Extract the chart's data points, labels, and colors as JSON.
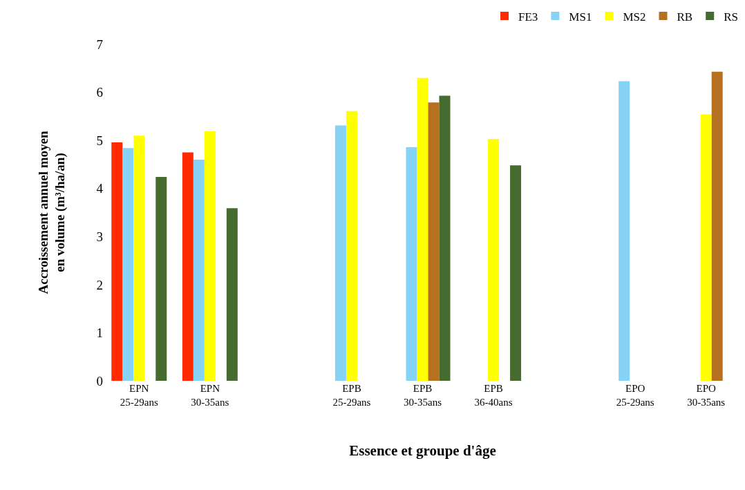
{
  "chart_data": {
    "type": "bar",
    "xlabel": "Essence et groupe d'âge",
    "ylabel": "Accroissement annuel moyen\nen volume (m³/ha/an)",
    "categories": [
      "EPN\n25-29ans",
      "EPN\n30-35ans",
      null,
      "EPB\n25-29ans",
      "EPB\n30-35ans",
      "EPB\n36-40ans",
      null,
      "EPO\n25-29ans",
      "EPO\n30-35ans"
    ],
    "series": [
      {
        "name": "FE3",
        "color": "#ff2a00",
        "values": [
          4.96,
          4.75,
          null,
          null,
          null,
          null,
          null,
          null,
          null
        ]
      },
      {
        "name": "MS1",
        "color": "#87d3f5",
        "values": [
          4.84,
          4.6,
          null,
          5.31,
          4.86,
          null,
          null,
          6.23,
          null
        ]
      },
      {
        "name": "MS2",
        "color": "#ffff00",
        "values": [
          5.1,
          5.19,
          null,
          5.61,
          6.3,
          5.03,
          null,
          null,
          5.54
        ]
      },
      {
        "name": "RB",
        "color": "#b5711f",
        "values": [
          null,
          null,
          null,
          null,
          5.79,
          null,
          null,
          null,
          6.43
        ]
      },
      {
        "name": "RS",
        "color": "#466b2f",
        "values": [
          4.24,
          3.59,
          null,
          null,
          5.93,
          4.48,
          null,
          null,
          null
        ]
      }
    ],
    "ylim": [
      0,
      7
    ],
    "yticks": [
      0,
      1,
      2,
      3,
      4,
      5,
      6,
      7
    ],
    "grid": false,
    "legend": "top right"
  }
}
